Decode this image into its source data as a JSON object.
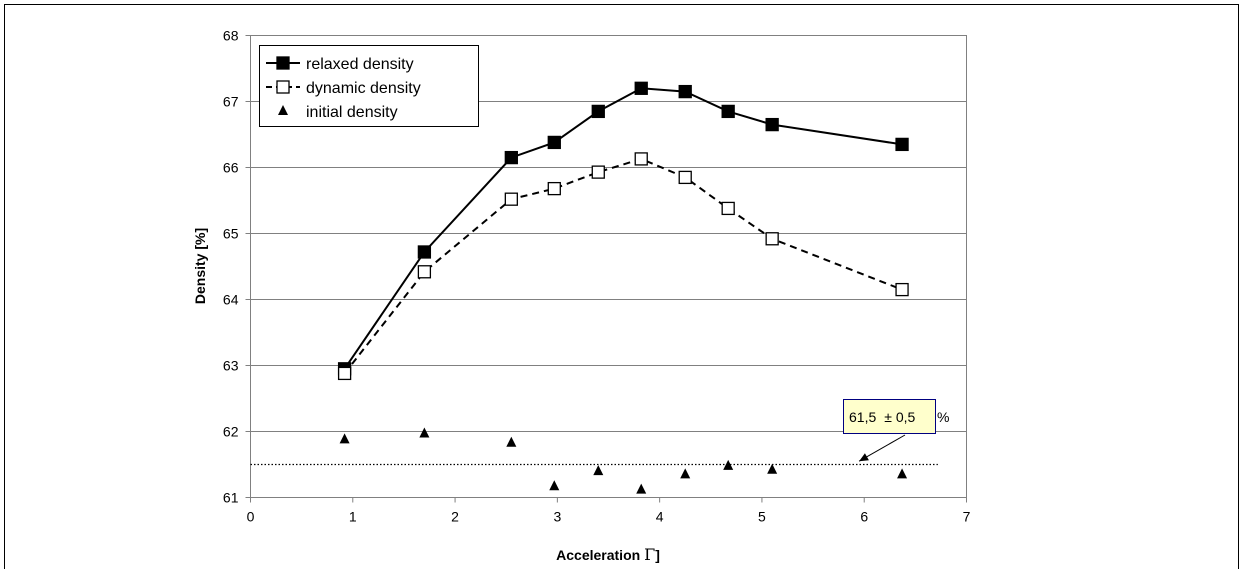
{
  "chart_data": {
    "type": "line",
    "xlabel": "Acceleration",
    "xlabel_symbol": "Γ",
    "xlabel_close": "]",
    "ylabel": "Density [%]",
    "xlim": [
      0,
      7
    ],
    "ylim": [
      61,
      68
    ],
    "x_ticks": [
      "0",
      "1",
      "2",
      "3",
      "4",
      "5",
      "6",
      "7"
    ],
    "y_ticks": [
      "61",
      "62",
      "63",
      "64",
      "65",
      "66",
      "67",
      "68"
    ],
    "grid": "horizontal",
    "legend_position": "top-left",
    "series": [
      {
        "name": "relaxed density",
        "style": "solid-line-filled-square",
        "x": [
          0.92,
          1.7,
          2.55,
          2.97,
          3.4,
          3.82,
          4.25,
          4.67,
          5.1,
          6.37
        ],
        "y": [
          62.95,
          64.72,
          66.15,
          66.38,
          66.85,
          67.2,
          67.15,
          66.85,
          66.65,
          66.35
        ]
      },
      {
        "name": "dynamic density",
        "style": "dashed-line-open-square",
        "x": [
          0.92,
          1.7,
          2.55,
          2.97,
          3.4,
          3.82,
          4.25,
          4.67,
          5.1,
          6.37
        ],
        "y": [
          62.88,
          64.42,
          65.52,
          65.68,
          65.93,
          66.13,
          65.85,
          65.38,
          64.92,
          64.15
        ]
      },
      {
        "name": "initial density",
        "style": "marker-triangle",
        "x": [
          0.92,
          1.7,
          2.55,
          2.97,
          3.4,
          3.82,
          4.25,
          4.67,
          5.1,
          6.37
        ],
        "y": [
          61.88,
          61.97,
          61.83,
          61.17,
          61.4,
          61.12,
          61.35,
          61.48,
          61.42,
          61.35
        ]
      }
    ],
    "reference_line": {
      "y": 61.5,
      "x_start": 0.0,
      "x_end": 6.72
    },
    "annotation": {
      "value": "61,5",
      "pm": "± 0,5",
      "unit": "%",
      "arrow_to": [
        5.95,
        61.55
      ]
    }
  }
}
